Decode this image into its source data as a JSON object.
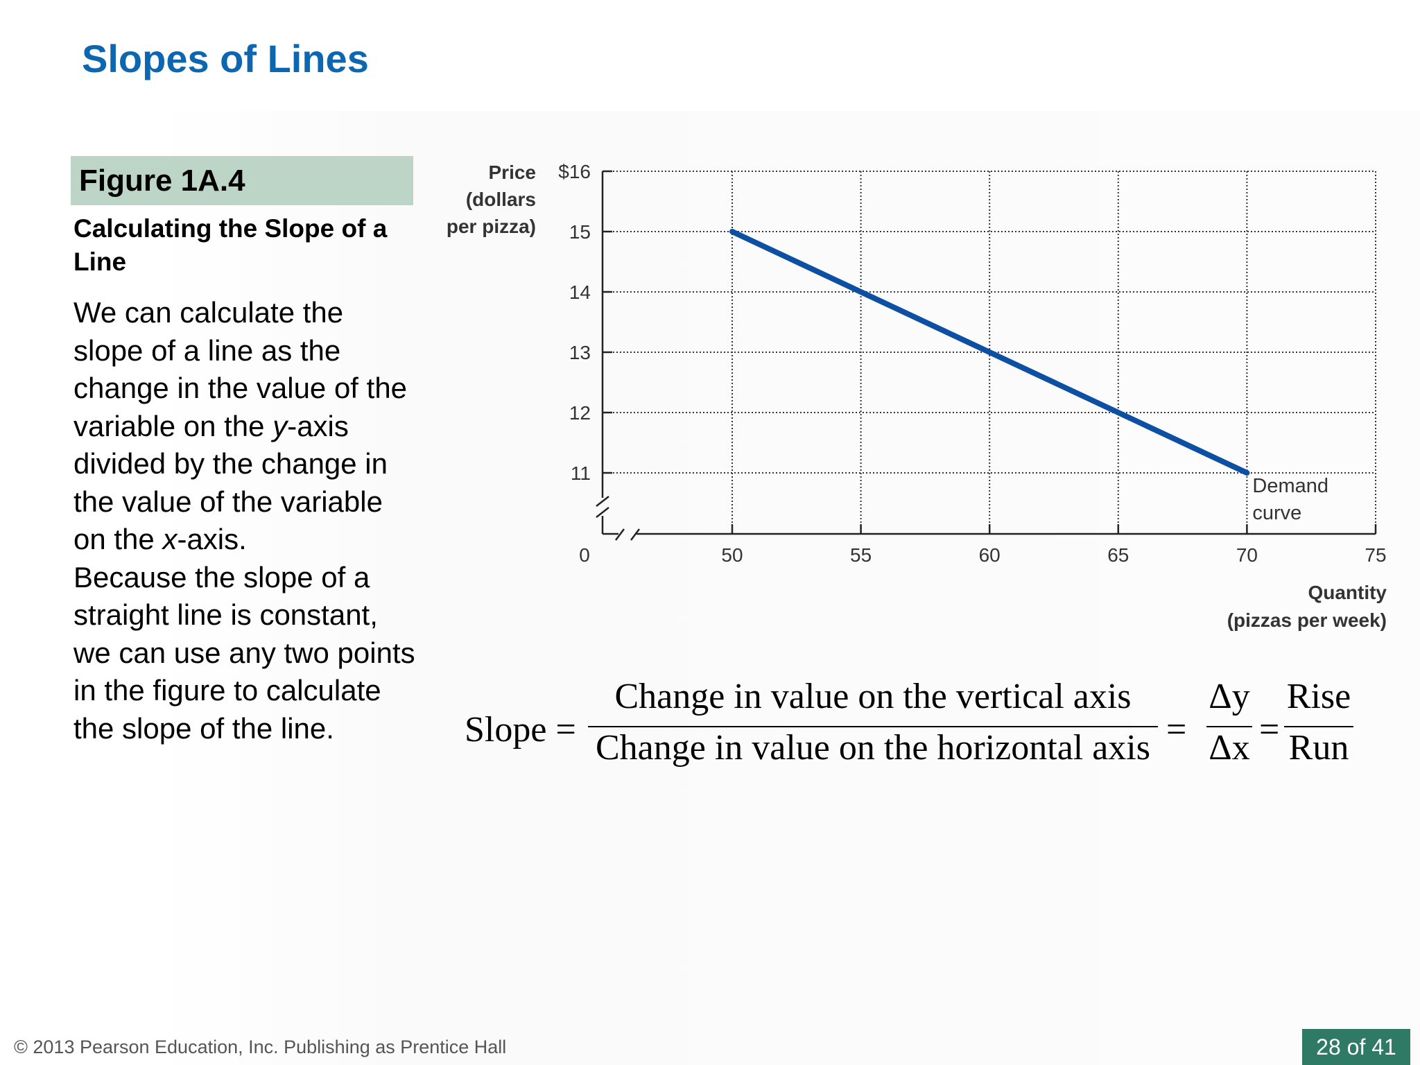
{
  "slide": {
    "title": "Slopes of Lines",
    "figure_label": "Figure 1A.4",
    "figure_subtitle": "Calculating the Slope of a Line",
    "body_paragraph_1": "We can calculate the slope of a line as the change in the value of the variable on the y-axis divided by the change in the value of the variable on the x-axis.",
    "body_paragraph_2": "Because the slope of a straight line is constant, we can use any two points in the figure to calculate the slope of the line.",
    "footer": "© 2013 Pearson Education, Inc. Publishing as Prentice Hall",
    "page_number": "28 of 41"
  },
  "formula": {
    "lhs": "Slope =",
    "numerator": "Change in value on the vertical axis",
    "denominator": "Change in value on the horizontal axis",
    "eq1": "=",
    "delta_num": "Δy",
    "delta_den": "Δx",
    "eq2": "=",
    "rise": "Rise",
    "run": "Run"
  },
  "chart_data": {
    "type": "line",
    "ylabel_lines": [
      "Price",
      "(dollars",
      "per pizza)"
    ],
    "xlabel_lines": [
      "Quantity",
      "(pizzas per week)"
    ],
    "origin_label": "0",
    "x_ticks": [
      50,
      55,
      60,
      65,
      70,
      75
    ],
    "y_ticks": [
      11,
      12,
      13,
      14,
      15,
      16
    ],
    "y_tick_labels": [
      "11",
      "12",
      "13",
      "14",
      "15",
      "$16"
    ],
    "xlim": [
      50,
      75
    ],
    "ylim": [
      11,
      16
    ],
    "axis_breaks": true,
    "grid": "dotted",
    "line_color": "#0d4fa3",
    "series": [
      {
        "name": "Demand curve",
        "label_lines": [
          "Demand",
          "curve"
        ],
        "x": [
          50,
          70
        ],
        "y": [
          15,
          11
        ]
      }
    ]
  }
}
